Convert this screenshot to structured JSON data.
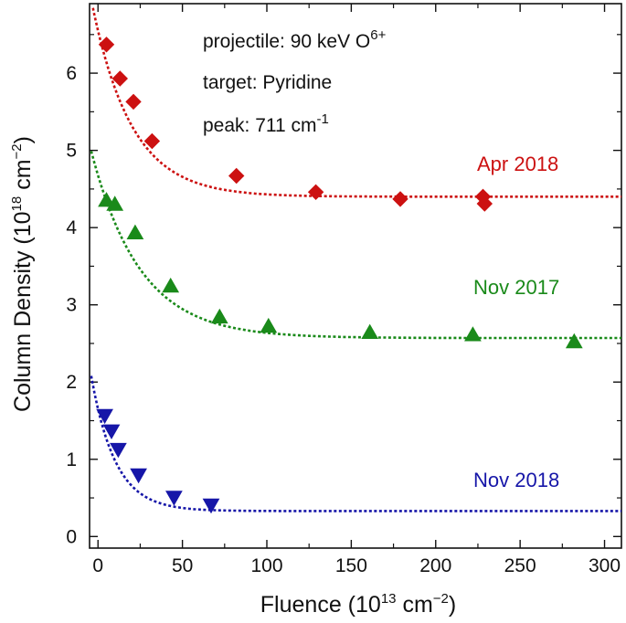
{
  "chart_data": {
    "type": "scatter",
    "xlabel": {
      "prefix": "Fluence (10",
      "exp": "13",
      "mid": " cm",
      "exp2": "−2",
      "suffix": ")"
    },
    "ylabel": {
      "prefix": "Column Density (10",
      "exp": "18",
      "mid": " cm",
      "exp2": "−2",
      "suffix": ")"
    },
    "xlim": [
      -5,
      310
    ],
    "ylim": [
      -0.15,
      6.9
    ],
    "xticks": [
      0,
      50,
      100,
      150,
      200,
      250,
      300
    ],
    "yticks": [
      0,
      1,
      2,
      3,
      4,
      5,
      6
    ],
    "annotations": {
      "projectile_prefix": "projectile: 90 keV O",
      "projectile_sup": "6+",
      "target": "target: Pyridine",
      "peak_prefix": "peak: 711 cm",
      "peak_sup": "-1"
    },
    "series": [
      {
        "name": "Apr 2018",
        "color": "#cc1111",
        "marker": "diamond",
        "points": [
          [
            5,
            6.37
          ],
          [
            13,
            5.93
          ],
          [
            21,
            5.63
          ],
          [
            32,
            5.12
          ],
          [
            82,
            4.67
          ],
          [
            129,
            4.46
          ],
          [
            179,
            4.37
          ],
          [
            228,
            4.4
          ],
          [
            229,
            4.31
          ]
        ],
        "fit": {
          "asymptote": 4.4,
          "amplitude": 2.55,
          "rate": 0.0425,
          "x_start": -4,
          "x_end": 310
        }
      },
      {
        "name": "Nov 2017",
        "color": "#1a8a1a",
        "marker": "triangle-up",
        "points": [
          [
            5,
            4.35
          ],
          [
            10,
            4.3
          ],
          [
            22,
            3.93
          ],
          [
            43,
            3.24
          ],
          [
            72,
            2.84
          ],
          [
            101,
            2.72
          ],
          [
            161,
            2.64
          ],
          [
            222,
            2.61
          ],
          [
            282,
            2.52
          ]
        ],
        "fit": {
          "asymptote": 2.57,
          "amplitude": 2.42,
          "rate": 0.0345,
          "x_start": -4,
          "x_end": 310
        }
      },
      {
        "name": "Nov 2018",
        "color": "#1616a8",
        "marker": "triangle-down",
        "points": [
          [
            4,
            1.57
          ],
          [
            8,
            1.37
          ],
          [
            12,
            1.13
          ],
          [
            24,
            0.8
          ],
          [
            45,
            0.51
          ],
          [
            67,
            0.41
          ]
        ],
        "fit": {
          "asymptote": 0.33,
          "amplitude": 1.75,
          "rate": 0.07,
          "x_start": -4,
          "x_end": 310
        }
      }
    ]
  }
}
